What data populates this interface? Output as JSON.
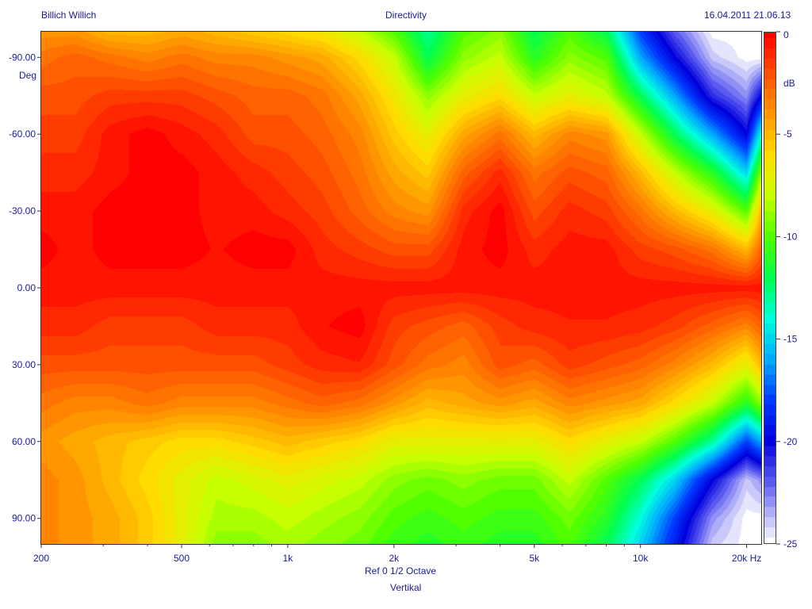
{
  "header": {
    "left": "Billich Willich",
    "center": "Directivity",
    "right": "16.04.2011 21.06.13"
  },
  "chart_data": {
    "type": "heatmap",
    "title": "Directivity",
    "xlabel": "Ref 0   1/2 Octave",
    "xlabel2": "Vertikal",
    "ylabel": "Deg",
    "colorbar_label": "dB",
    "x_scale": "log",
    "xlim": [
      200,
      22000
    ],
    "ylim": [
      -100,
      100
    ],
    "x_ticks": [
      {
        "value": 200,
        "label": "200"
      },
      {
        "value": 500,
        "label": "500"
      },
      {
        "value": 1000,
        "label": "1k"
      },
      {
        "value": 2000,
        "label": "2k"
      },
      {
        "value": 5000,
        "label": "5k"
      },
      {
        "value": 10000,
        "label": "10k"
      },
      {
        "value": 20000,
        "label": "20k Hz"
      }
    ],
    "y_ticks": [
      {
        "value": -90,
        "label": "-90.00"
      },
      {
        "value": -60,
        "label": "-60.00"
      },
      {
        "value": -30,
        "label": "-30.00"
      },
      {
        "value": 0,
        "label": "0.00"
      },
      {
        "value": 30,
        "label": "30.00"
      },
      {
        "value": 60,
        "label": "60.00"
      },
      {
        "value": 90,
        "label": "90.00"
      }
    ],
    "colorbar_ticks": [
      {
        "value": 0,
        "label": "0"
      },
      {
        "value": -5,
        "label": "-5"
      },
      {
        "value": -10,
        "label": "-10"
      },
      {
        "value": -15,
        "label": "-15"
      },
      {
        "value": -20,
        "label": "-20"
      },
      {
        "value": -25,
        "label": "-25"
      }
    ],
    "z_range": [
      -25,
      0
    ],
    "z_unit": "dB",
    "frequencies": [
      200,
      250,
      315,
      400,
      500,
      630,
      800,
      1000,
      1250,
      1600,
      2000,
      2500,
      3150,
      4000,
      5000,
      6300,
      8000,
      10000,
      12500,
      16000,
      20000,
      22000
    ],
    "angles": [
      -100,
      -90,
      -75,
      -60,
      -45,
      -30,
      -15,
      0,
      15,
      30,
      45,
      60,
      75,
      90,
      100
    ],
    "values_db": [
      [
        -4,
        -4,
        -5,
        -5,
        -4.5,
        -5,
        -5.5,
        -6,
        -6.5,
        -8,
        -10,
        -13,
        -10,
        -9,
        -12,
        -10,
        -12,
        -18,
        -22,
        -25,
        -25,
        -25
      ],
      [
        -3,
        -2.5,
        -3,
        -3.5,
        -3,
        -3.5,
        -3.5,
        -4,
        -4.5,
        -6,
        -8,
        -12,
        -9,
        -8,
        -11,
        -9,
        -10,
        -16,
        -20,
        -24,
        -25,
        -25
      ],
      [
        -2,
        -2,
        -1.5,
        -1.5,
        -1.5,
        -2,
        -2.5,
        -2.5,
        -3,
        -4.5,
        -6.5,
        -9,
        -7,
        -6,
        -8,
        -7,
        -8,
        -12,
        -16,
        -21,
        -23,
        -20
      ],
      [
        -1.5,
        -1.5,
        -0.5,
        0,
        -0.5,
        -1,
        -2,
        -2,
        -2.5,
        -3.5,
        -5.5,
        -7,
        -4.5,
        -3,
        -5,
        -3.5,
        -4,
        -8,
        -12,
        -16,
        -20,
        -14
      ],
      [
        -1,
        -1,
        -0.5,
        0,
        0,
        -0.5,
        -1,
        -1.5,
        -2,
        -3,
        -4.5,
        -5.5,
        -2.5,
        -1,
        -3,
        -2,
        -2.5,
        -5,
        -8,
        -11,
        -15,
        -9
      ],
      [
        -0.5,
        -0.5,
        0,
        0,
        0,
        -0.5,
        -0.5,
        -1,
        -1.5,
        -2.5,
        -3.5,
        -4,
        -1,
        0,
        -2,
        -1,
        -1.5,
        -3,
        -5,
        -7,
        -10,
        -5
      ],
      [
        0,
        -0.5,
        0,
        0,
        0,
        -0.3,
        0,
        0,
        -1,
        -1.5,
        -2,
        -2,
        -0.5,
        0,
        -1,
        -0.5,
        -0.5,
        -1.5,
        -2,
        -3,
        -5,
        -2.5
      ],
      [
        -0.5,
        -0.5,
        -0.5,
        -0.5,
        -0.5,
        -0.5,
        -0.5,
        -0.5,
        -0.5,
        -0.5,
        -0.5,
        -0.5,
        -0.5,
        -0.5,
        -0.5,
        -0.5,
        -0.5,
        -0.5,
        -0.5,
        -0.5,
        -0.5,
        -0.5
      ],
      [
        -1,
        -1,
        -1.5,
        -1.5,
        -1.5,
        -1,
        -1,
        -1,
        -0.3,
        0,
        -1.5,
        -2,
        -2.5,
        -1.5,
        -1,
        -0.8,
        -0.8,
        -1,
        -1.5,
        -2.5,
        -3.5,
        -2.5
      ],
      [
        -2,
        -2,
        -2,
        -2,
        -2,
        -2,
        -2,
        -1.5,
        -1,
        -0.8,
        -2,
        -3,
        -3.5,
        -2,
        -2.5,
        -1.5,
        -2,
        -2.5,
        -3.5,
        -5,
        -7,
        -5
      ],
      [
        -3,
        -3.5,
        -3.5,
        -3,
        -3.5,
        -3.5,
        -3.5,
        -3,
        -2.5,
        -3,
        -4,
        -5,
        -4.5,
        -4,
        -4.5,
        -3.5,
        -4,
        -4.5,
        -6,
        -8,
        -11,
        -9
      ],
      [
        -4,
        -4.5,
        -5,
        -5.5,
        -6,
        -6,
        -5.5,
        -5,
        -5.5,
        -6,
        -7,
        -7,
        -7,
        -7,
        -7,
        -6,
        -7,
        -8,
        -10,
        -13,
        -18,
        -16
      ],
      [
        -3.5,
        -4,
        -5,
        -6,
        -7,
        -8,
        -7.5,
        -7,
        -7.5,
        -8,
        -9,
        -9.5,
        -9,
        -9.5,
        -9.5,
        -8,
        -10,
        -12,
        -15,
        -20,
        -24,
        -23
      ],
      [
        -3.5,
        -4,
        -4.5,
        -5.5,
        -7,
        -8.5,
        -8.5,
        -8,
        -8.5,
        -9,
        -10,
        -10.5,
        -10,
        -10.5,
        -10.5,
        -9.5,
        -11,
        -14,
        -18,
        -23,
        -25,
        -25
      ],
      [
        -3.5,
        -4,
        -4.5,
        -5.5,
        -7,
        -9,
        -9,
        -8.5,
        -9,
        -9.5,
        -10.5,
        -11,
        -10.5,
        -11,
        -11,
        -10,
        -12,
        -15,
        -19,
        -24,
        -25,
        -25
      ]
    ]
  }
}
